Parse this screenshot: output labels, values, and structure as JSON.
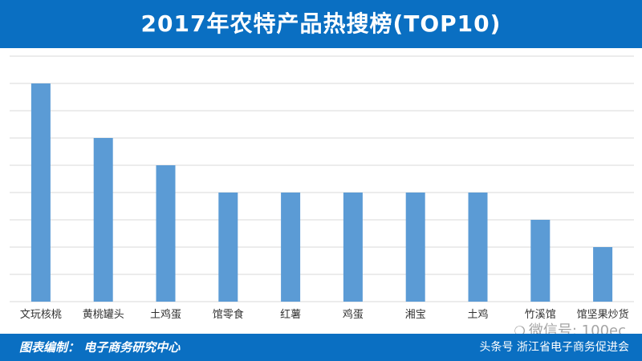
{
  "header": {
    "title": "2017年农特产品热搜榜(TOP10)"
  },
  "footer": {
    "credit": "图表编制：  电子商务研究中心",
    "source": "头条号  浙江省电子商务促进会"
  },
  "watermark": {
    "icon": "wechat-bubble-icon",
    "text": "微信号: 100ec"
  },
  "colors": {
    "header_bg": "#0a6fc2",
    "bar": "#5b9bd5",
    "grid": "#d9d9d9"
  },
  "chart_data": {
    "type": "bar",
    "title": "2017年农特产品热搜榜(TOP10)",
    "categories": [
      "文玩核桃",
      "黄桃罐头",
      "土鸡蛋",
      "馆零食",
      "红薯",
      "鸡蛋",
      "湘宝",
      "土鸡",
      "竹溪馆",
      "馆坚果炒货"
    ],
    "values": [
      8,
      6,
      5,
      4,
      4,
      4,
      4,
      4,
      3,
      2
    ],
    "ylim": [
      0,
      9
    ],
    "grid": true,
    "xlabel": "",
    "ylabel": ""
  }
}
